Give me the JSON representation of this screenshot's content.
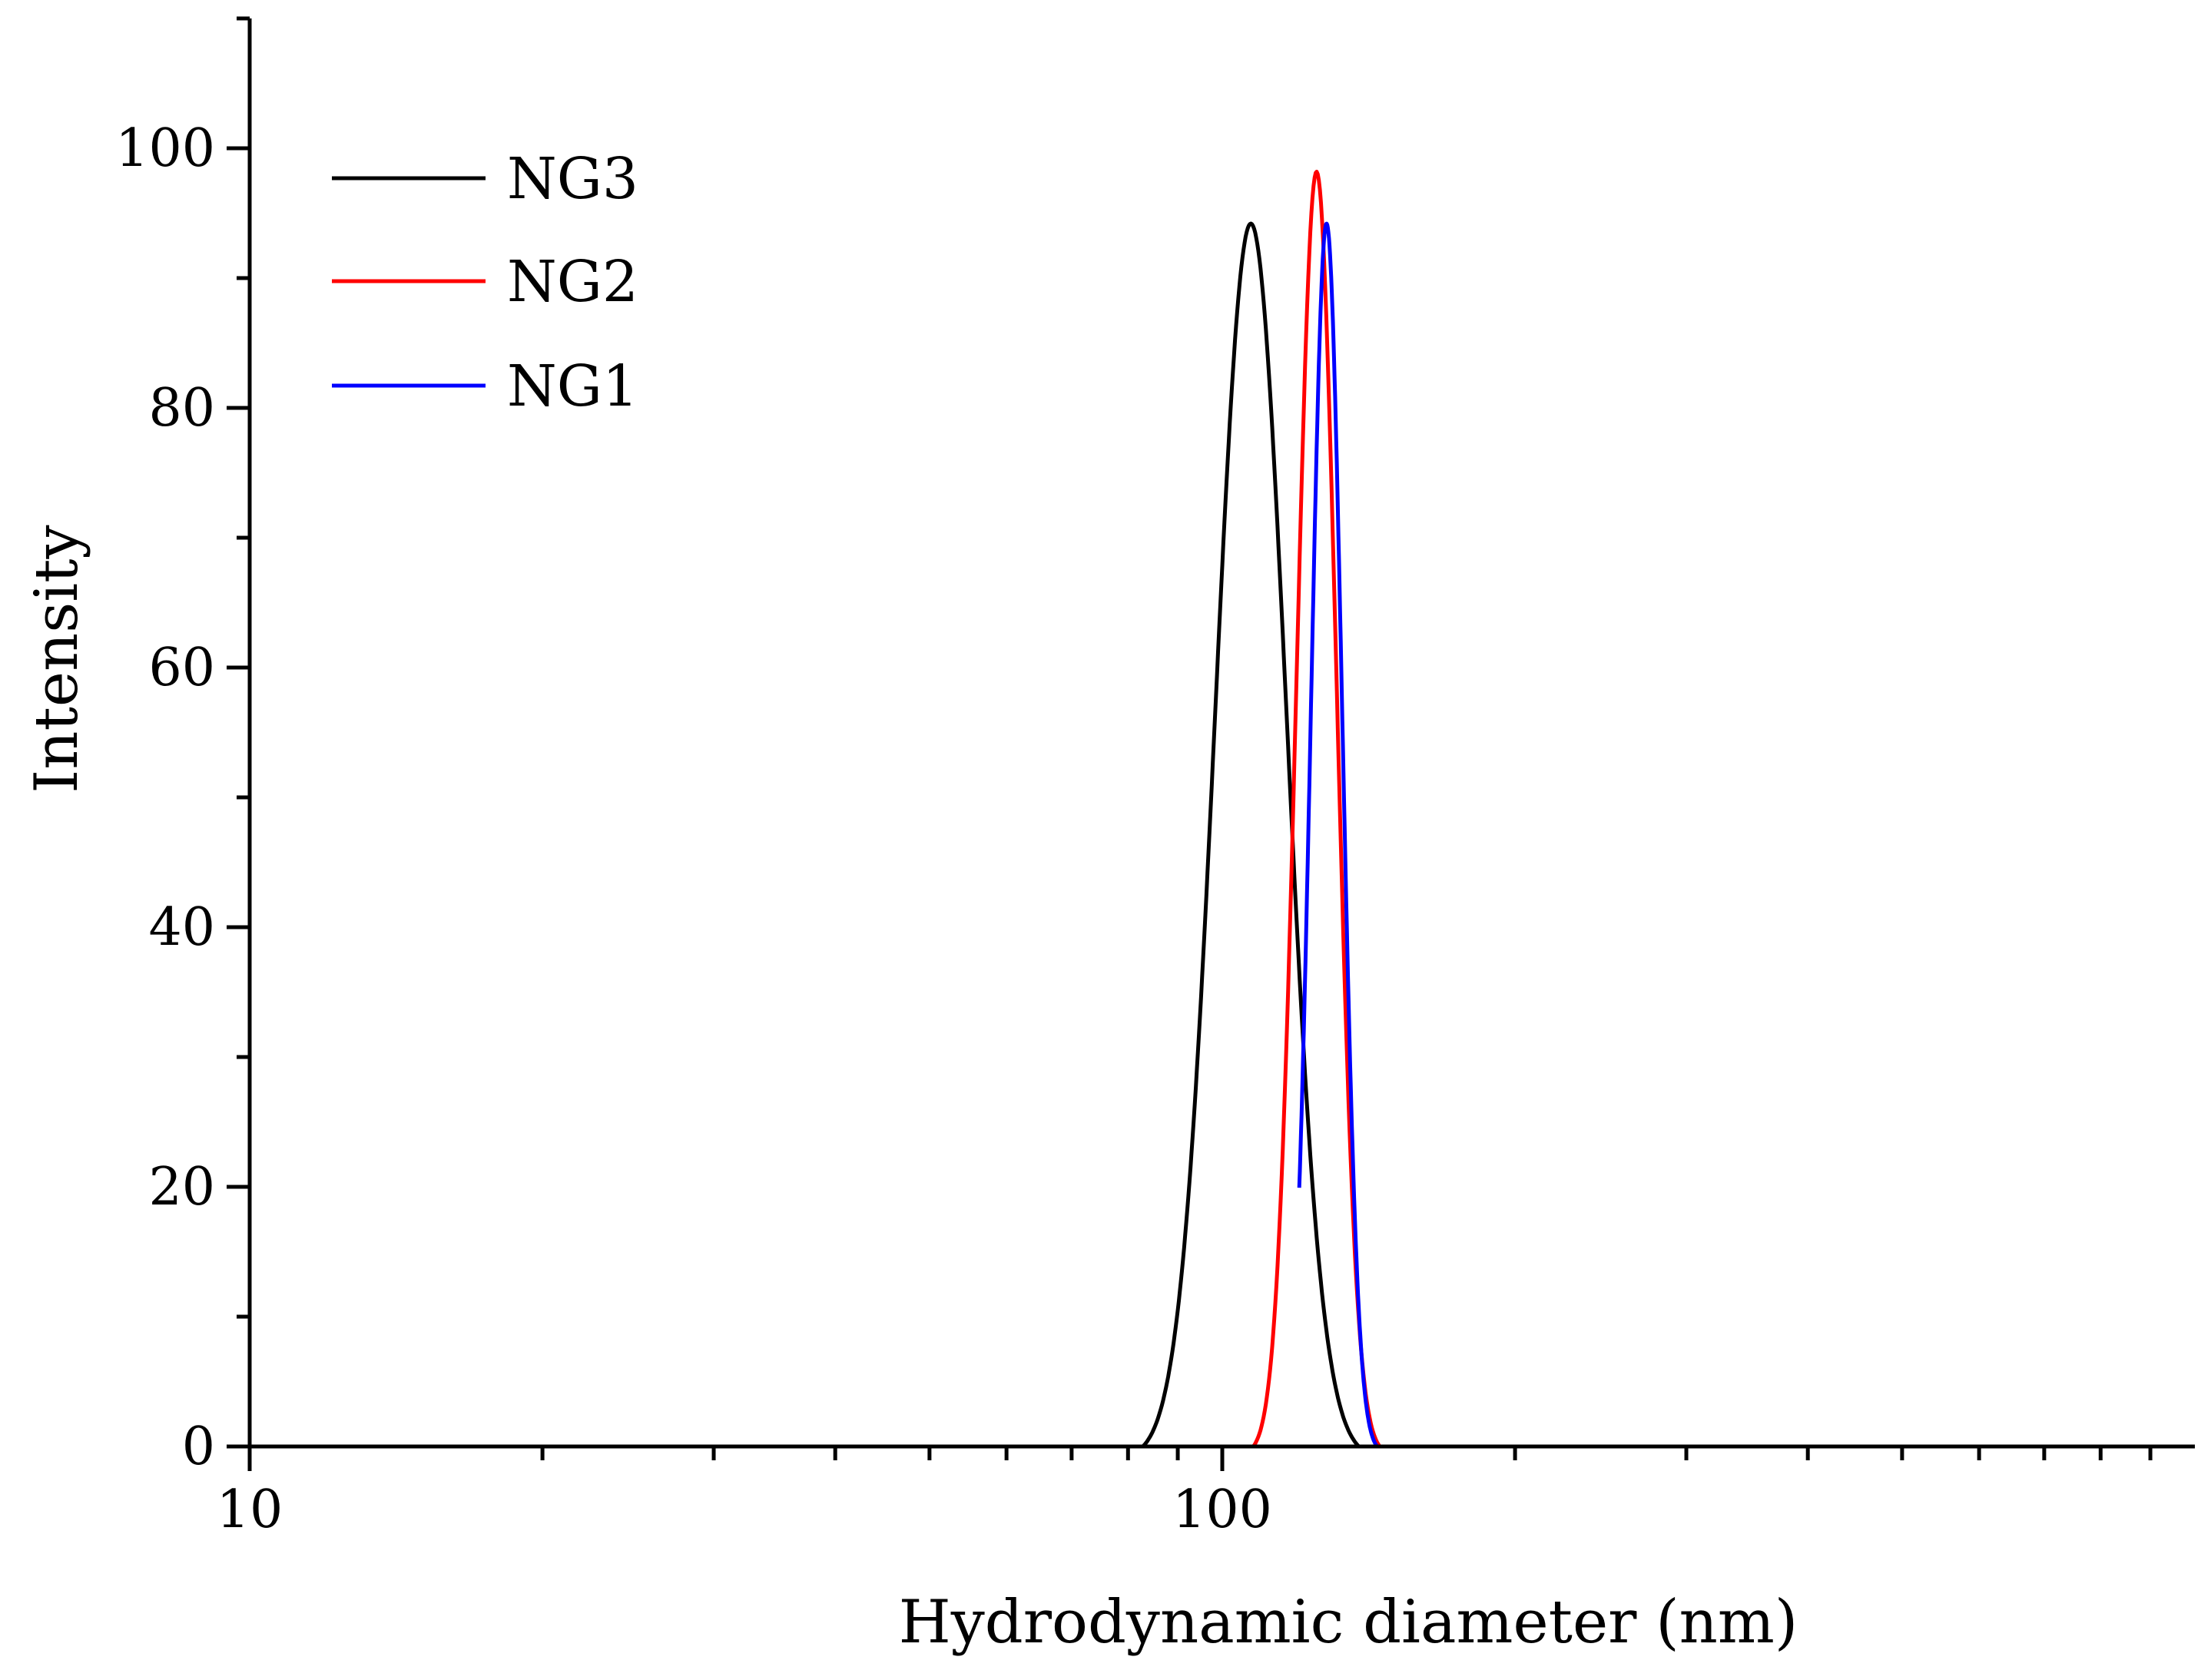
{
  "chart_data": {
    "type": "line",
    "title": "",
    "xlabel": "Hydrodynamic diameter (nm)",
    "ylabel": "Intensity",
    "xscale": "log",
    "xlim": [
      10,
      1000
    ],
    "ylim": [
      0,
      110
    ],
    "x_tick_labels": [
      {
        "value": 10,
        "label": "10"
      },
      {
        "value": 100,
        "label": "100"
      }
    ],
    "y_tick_labels": [
      {
        "value": 0,
        "label": "0"
      },
      {
        "value": 20,
        "label": "20"
      },
      {
        "value": 40,
        "label": "40"
      },
      {
        "value": 60,
        "label": "60"
      },
      {
        "value": 80,
        "label": "80"
      },
      {
        "value": 100,
        "label": "100"
      }
    ],
    "x_minor_ticks": [
      20,
      30,
      40,
      50,
      60,
      70,
      80,
      90,
      200,
      300,
      400,
      500,
      600,
      700,
      800,
      900
    ],
    "y_minor_ticks": [
      10,
      30,
      50,
      70,
      90,
      110
    ],
    "grid": false,
    "legend_position": "top-left",
    "series": [
      {
        "name": "NG3",
        "color": "#000000",
        "x_start": 18,
        "x_end": 1000,
        "peak_x": 107,
        "peak_y": 94.2,
        "sigma_log10": 0.0365,
        "support_log10": 0.111
      },
      {
        "name": "NG2",
        "color": "#ff0000",
        "x_start": 18,
        "x_end": 1000,
        "peak_x": 125,
        "peak_y": 98.2,
        "sigma_log10": 0.0205,
        "support_log10": 0.065
      },
      {
        "name": "NG1",
        "color": "#0000ff",
        "x_start": 120,
        "x_end": 1000,
        "peak_x": 128,
        "peak_y": 94.2,
        "sigma_log10": 0.016,
        "support_log10": 0.052
      }
    ]
  }
}
